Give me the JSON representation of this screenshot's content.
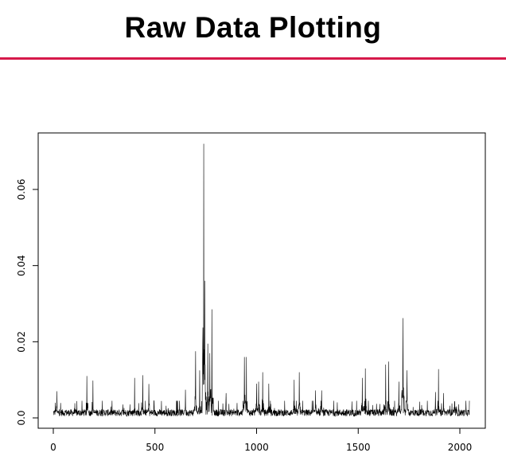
{
  "slide": {
    "title": "Raw Data Plotting",
    "accent_color": "#d6194a"
  },
  "chart_data": {
    "type": "line",
    "title": "",
    "xlabel": "",
    "ylabel": "",
    "xlim": [
      0,
      2048
    ],
    "ylim": [
      0.0,
      0.072
    ],
    "x_ticks": [
      0,
      500,
      1000,
      1500,
      2000
    ],
    "x_tick_labels": [
      "0",
      "500",
      "1000",
      "1500",
      "2000"
    ],
    "y_ticks": [
      0.0,
      0.02,
      0.04,
      0.06
    ],
    "y_tick_labels": [
      "0.0",
      "0.02",
      "0.04",
      "0.06"
    ],
    "grid": false,
    "n_points": 2048,
    "baseline": 0.0015,
    "series_color": "#000000",
    "notable_peaks": [
      {
        "x": 10,
        "y": 0.004
      },
      {
        "x": 18,
        "y": 0.007
      },
      {
        "x": 165,
        "y": 0.011
      },
      {
        "x": 195,
        "y": 0.0098
      },
      {
        "x": 400,
        "y": 0.0105
      },
      {
        "x": 440,
        "y": 0.0112
      },
      {
        "x": 470,
        "y": 0.0089
      },
      {
        "x": 650,
        "y": 0.0074
      },
      {
        "x": 700,
        "y": 0.0175
      },
      {
        "x": 720,
        "y": 0.0125
      },
      {
        "x": 735,
        "y": 0.0175
      },
      {
        "x": 740,
        "y": 0.072
      },
      {
        "x": 745,
        "y": 0.036
      },
      {
        "x": 760,
        "y": 0.0195
      },
      {
        "x": 770,
        "y": 0.017
      },
      {
        "x": 780,
        "y": 0.0285
      },
      {
        "x": 850,
        "y": 0.0065
      },
      {
        "x": 940,
        "y": 0.016
      },
      {
        "x": 950,
        "y": 0.016
      },
      {
        "x": 1000,
        "y": 0.009
      },
      {
        "x": 1010,
        "y": 0.0095
      },
      {
        "x": 1030,
        "y": 0.012
      },
      {
        "x": 1060,
        "y": 0.009
      },
      {
        "x": 1185,
        "y": 0.01
      },
      {
        "x": 1210,
        "y": 0.012
      },
      {
        "x": 1290,
        "y": 0.0072
      },
      {
        "x": 1320,
        "y": 0.0072
      },
      {
        "x": 1520,
        "y": 0.0105
      },
      {
        "x": 1535,
        "y": 0.013
      },
      {
        "x": 1635,
        "y": 0.014
      },
      {
        "x": 1650,
        "y": 0.0148
      },
      {
        "x": 1700,
        "y": 0.0095
      },
      {
        "x": 1720,
        "y": 0.0262
      },
      {
        "x": 1740,
        "y": 0.0125
      },
      {
        "x": 1880,
        "y": 0.0068
      },
      {
        "x": 1895,
        "y": 0.0128
      },
      {
        "x": 1920,
        "y": 0.0065
      },
      {
        "x": 1975,
        "y": 0.0042
      },
      {
        "x": 2030,
        "y": 0.0045
      }
    ]
  }
}
